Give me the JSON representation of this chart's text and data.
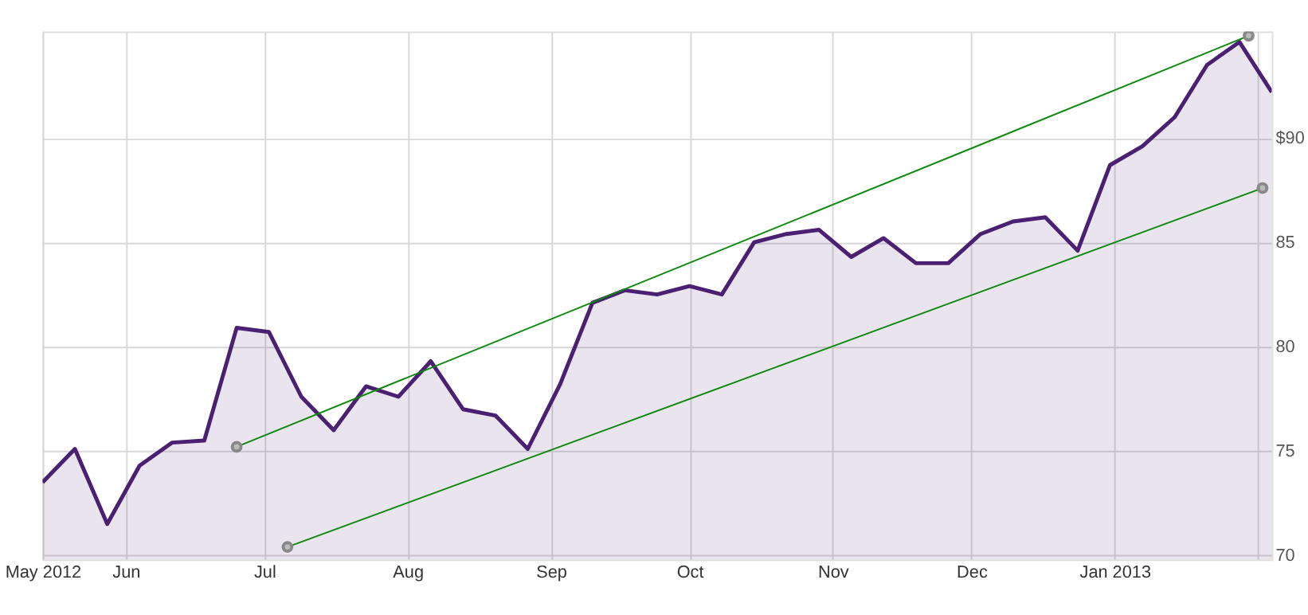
{
  "chart_data": {
    "type": "area",
    "xlim": [
      "2012-05-14",
      "2013-02-04"
    ],
    "xticks": [
      {
        "value": "2012-05-14",
        "label": "May 2012"
      },
      {
        "value": "2012-06-01",
        "label": "Jun"
      },
      {
        "value": "2012-07-01",
        "label": "Jul"
      },
      {
        "value": "2012-08-01",
        "label": "Aug"
      },
      {
        "value": "2012-09-01",
        "label": "Sep"
      },
      {
        "value": "2012-10-01",
        "label": "Oct"
      },
      {
        "value": "2012-11-01",
        "label": "Nov"
      },
      {
        "value": "2012-12-01",
        "label": "Dec"
      },
      {
        "value": "2013-01-01",
        "label": "Jan 2013"
      },
      {
        "value": "2013-02-01",
        "label": null
      }
    ],
    "ylim": [
      69.8,
      95.1
    ],
    "yticks": [
      70,
      75,
      80,
      85,
      {
        "value": 90,
        "label": "$90"
      }
    ],
    "grid": true,
    "series": [
      {
        "color": "#4b1f72",
        "x": [
          "2012-05-14",
          "2012-05-21",
          "2012-05-28",
          "2012-06-04",
          "2012-06-11",
          "2012-06-18",
          "2012-06-25",
          "2012-07-02",
          "2012-07-09",
          "2012-07-16",
          "2012-07-23",
          "2012-07-30",
          "2012-08-06",
          "2012-08-13",
          "2012-08-20",
          "2012-08-27",
          "2012-09-03",
          "2012-09-10",
          "2012-09-17",
          "2012-09-24",
          "2012-10-01",
          "2012-10-08",
          "2012-10-15",
          "2012-10-22",
          "2012-10-29",
          "2012-11-05",
          "2012-11-12",
          "2012-11-19",
          "2012-11-26",
          "2012-12-03",
          "2012-12-10",
          "2012-12-17",
          "2012-12-24",
          "2012-12-31",
          "2013-01-07",
          "2013-01-14",
          "2013-01-21",
          "2013-01-28",
          "2013-02-04"
        ],
        "values": [
          73.5,
          75.1,
          71.5,
          74.3,
          75.4,
          75.5,
          80.9,
          80.7,
          77.6,
          76.0,
          78.1,
          77.6,
          79.3,
          77.0,
          76.7,
          75.1,
          78.2,
          82.1,
          82.7,
          82.5,
          82.9,
          82.5,
          85.0,
          85.4,
          85.6,
          84.3,
          85.2,
          84.0,
          84.0,
          85.4,
          86.0,
          86.2,
          84.6,
          88.7,
          89.6,
          91.0,
          93.5,
          94.6,
          92.2
        ]
      },
      {
        "type": "line",
        "color": "#0a8a0a",
        "marker": "circle",
        "x": [
          "2012-06-25",
          "2013-01-30"
        ],
        "values": [
          75.2,
          94.9
        ]
      },
      {
        "type": "line",
        "color": "#0a8a0a",
        "marker": "circle",
        "x": [
          "2012-07-06",
          "2013-02-02"
        ],
        "values": [
          70.4,
          87.6
        ]
      }
    ]
  }
}
